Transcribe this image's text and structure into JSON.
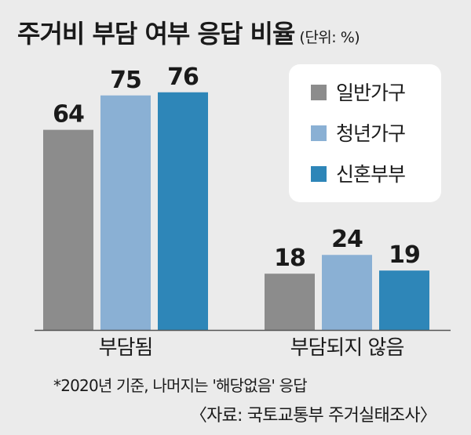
{
  "title": "주거비 부담 여부 응답 비율",
  "unit": "(단위: %)",
  "chart_data": {
    "type": "bar",
    "categories": [
      "부담됨",
      "부담되지 않음"
    ],
    "series": [
      {
        "name": "일반가구",
        "color": "#8c8c8c",
        "values": [
          64,
          18
        ]
      },
      {
        "name": "청년가구",
        "color": "#8ab0d4",
        "values": [
          75,
          24
        ]
      },
      {
        "name": "신혼부부",
        "color": "#2e86b8",
        "values": [
          76,
          19
        ]
      }
    ],
    "ylim": [
      0,
      100
    ],
    "grid": false,
    "legend_position": "top-right"
  },
  "note": "*2020년 기준, 나머지는 '해당없음' 응답",
  "source": "〈자료: 국토교통부 주거실태조사〉"
}
